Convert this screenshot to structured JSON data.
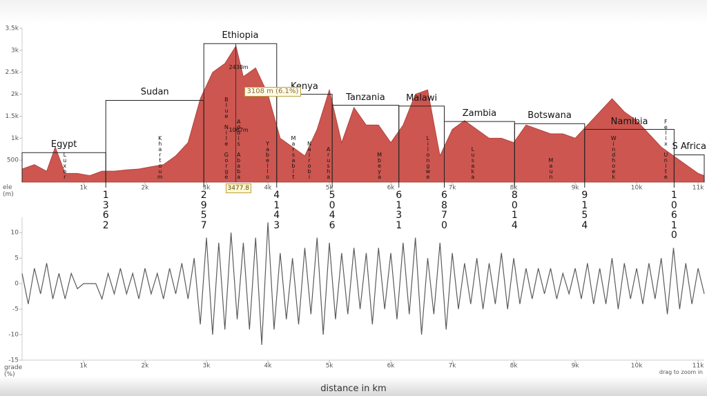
{
  "chart_data": [
    {
      "type": "area",
      "ylabel": "ele (m)",
      "color": "#cd5650",
      "x": [
        0,
        200,
        400,
        540,
        700,
        900,
        1100,
        1300,
        1500,
        1700,
        1900,
        2100,
        2300,
        2500,
        2700,
        2900,
        3100,
        3300,
        3480,
        3600,
        3800,
        4000,
        4200,
        4400,
        4600,
        4800,
        5000,
        5200,
        5400,
        5600,
        5800,
        6000,
        6200,
        6400,
        6600,
        6800,
        7000,
        7200,
        7400,
        7600,
        7800,
        8000,
        8200,
        8400,
        8600,
        8800,
        9000,
        9200,
        9400,
        9600,
        9800,
        10000,
        10200,
        10400,
        10600,
        10800,
        11000,
        11100
      ],
      "values": [
        300,
        400,
        250,
        800,
        200,
        200,
        150,
        250,
        250,
        280,
        300,
        350,
        400,
        600,
        900,
        1900,
        2500,
        2700,
        3100,
        2400,
        2600,
        2000,
        1000,
        800,
        600,
        1200,
        2100,
        900,
        1700,
        1300,
        1300,
        900,
        1300,
        2000,
        2100,
        600,
        1200,
        1400,
        1200,
        1000,
        1000,
        900,
        1300,
        1200,
        1100,
        1100,
        1000,
        1300,
        1600,
        1900,
        1600,
        1400,
        1100,
        800,
        600,
        400,
        200,
        150
      ],
      "xlim": [
        0,
        11100
      ],
      "xticks": [
        {
          "value": 1000,
          "label": "1k"
        },
        {
          "value": 2000,
          "label": "2k"
        },
        {
          "value": 3000,
          "label": "3k"
        },
        {
          "value": 4000,
          "label": "4k"
        },
        {
          "value": 5000,
          "label": "5k"
        },
        {
          "value": 6000,
          "label": "6k"
        },
        {
          "value": 7000,
          "label": "7k"
        },
        {
          "value": 8000,
          "label": "8k"
        },
        {
          "value": 9000,
          "label": "9k"
        },
        {
          "value": 10000,
          "label": "10k"
        },
        {
          "value": 11000,
          "label": "11k"
        }
      ],
      "ylim": [
        0,
        3500
      ],
      "yticks": [
        500,
        {
          "value": 1000,
          "label": "1k"
        },
        {
          "value": 1500,
          "label": "1.5k"
        },
        {
          "value": 2000,
          "label": "2k"
        },
        {
          "value": 2500,
          "label": "2.5k"
        },
        {
          "value": 3000,
          "label": "3k"
        },
        {
          "value": 3500,
          "label": "3.5k"
        }
      ],
      "regions": [
        {
          "name": "Egypt",
          "value": 670
        },
        {
          "name": "Sudan",
          "value": 1860
        },
        {
          "name": "Ethiopia",
          "value": 3150
        },
        {
          "name": "Kenya",
          "value": 2000
        },
        {
          "name": "Tanzania",
          "value": 1750
        },
        {
          "name": "Malawi",
          "value": 1730
        },
        {
          "name": "Zambia",
          "value": 1380
        },
        {
          "name": "Botswana",
          "value": 1330
        },
        {
          "name": "Namibia",
          "value": 1200
        },
        {
          "name": "S Africa",
          "value": 620
        }
      ],
      "boundaries": [
        1362,
        2957,
        4143,
        5046,
        6131,
        6870,
        8014,
        9154,
        10610
      ],
      "places": [
        {
          "label": "Luxor",
          "x": 700
        },
        {
          "label": "Khartoum",
          "x": 2250
        },
        {
          "label": "Blue Nile Gorge",
          "x": 3330
        },
        {
          "label": "Addis Ababa",
          "x": 3530
        },
        {
          "label": "Yabello",
          "x": 4000
        },
        {
          "label": "Marsabit",
          "x": 4420
        },
        {
          "label": "Nairobi",
          "x": 4680
        },
        {
          "label": "Arusha",
          "x": 4990
        },
        {
          "label": "Mbeya",
          "x": 5820
        },
        {
          "label": "Lilongwe",
          "x": 6610
        },
        {
          "label": "Lusaka",
          "x": 7340
        },
        {
          "label": "Maun",
          "x": 8610
        },
        {
          "label": "Windhoek",
          "x": 9630
        },
        {
          "label": "Felix Unite",
          "x": 10480
        }
      ],
      "annotations": [
        "2438m",
        "1067m"
      ],
      "tooltip": "3108 m (6.1%)",
      "cursor": 3477.8
    },
    {
      "type": "line",
      "ylabel": "grade (%)",
      "xlabel": "distance in km",
      "note": "drag to zoom in",
      "color": "#5a5a5a",
      "x": [
        0,
        100,
        200,
        300,
        400,
        500,
        600,
        700,
        800,
        900,
        1000,
        1100,
        1200,
        1300,
        1400,
        1500,
        1600,
        1700,
        1800,
        1900,
        2000,
        2100,
        2200,
        2300,
        2400,
        2500,
        2600,
        2700,
        2800,
        2900,
        3000,
        3100,
        3200,
        3300,
        3400,
        3500,
        3600,
        3700,
        3800,
        3900,
        4000,
        4100,
        4200,
        4300,
        4400,
        4500,
        4600,
        4700,
        4800,
        4900,
        5000,
        5100,
        5200,
        5300,
        5400,
        5500,
        5600,
        5700,
        5800,
        5900,
        6000,
        6100,
        6200,
        6300,
        6400,
        6500,
        6600,
        6700,
        6800,
        6900,
        7000,
        7100,
        7200,
        7300,
        7400,
        7500,
        7600,
        7700,
        7800,
        7900,
        8000,
        8100,
        8200,
        8300,
        8400,
        8500,
        8600,
        8700,
        8800,
        8900,
        9000,
        9100,
        9200,
        9300,
        9400,
        9500,
        9600,
        9700,
        9800,
        9900,
        10000,
        10100,
        10200,
        10300,
        10400,
        10500,
        10600,
        10700,
        10800,
        10900,
        11000,
        11100
      ],
      "values": [
        2,
        -4,
        3,
        -2,
        4,
        -3,
        2,
        -3,
        2,
        -1,
        0,
        0,
        0,
        -3,
        2,
        -2,
        3,
        -2,
        2,
        -3,
        3,
        -2,
        2,
        -3,
        3,
        -2,
        4,
        -3,
        5,
        -8,
        9,
        -10,
        8,
        -9,
        10,
        -7,
        8,
        -9,
        9,
        -12,
        12,
        -9,
        6,
        -7,
        5,
        -8,
        7,
        -6,
        9,
        -10,
        8,
        -7,
        6,
        -6,
        7,
        -5,
        6,
        -8,
        7,
        -5,
        6,
        -7,
        8,
        -6,
        9,
        -10,
        5,
        -6,
        8,
        -9,
        6,
        -5,
        4,
        -4,
        5,
        -5,
        4,
        -4,
        6,
        -5,
        5,
        -4,
        3,
        -3,
        3,
        -2,
        3,
        -3,
        2,
        -2,
        3,
        -3,
        4,
        -4,
        3,
        -4,
        5,
        -5,
        4,
        -3,
        3,
        -4,
        4,
        -3,
        5,
        -6,
        7,
        -5,
        4,
        -4,
        3,
        -2
      ],
      "xlim": [
        0,
        11100
      ],
      "xticks": [
        {
          "value": 1000,
          "label": "1k"
        },
        {
          "value": 2000,
          "label": "2k"
        },
        {
          "value": 3000,
          "label": "3k"
        },
        {
          "value": 4000,
          "label": "4k"
        },
        {
          "value": 5000,
          "label": "5k"
        },
        {
          "value": 6000,
          "label": "6k"
        },
        {
          "value": 7000,
          "label": "7k"
        },
        {
          "value": 8000,
          "label": "8k"
        },
        {
          "value": 9000,
          "label": "9k"
        },
        {
          "value": 10000,
          "label": "10k"
        },
        {
          "value": 11000,
          "label": "11k"
        }
      ],
      "ylim": [
        -15,
        13
      ],
      "yticks": [
        10,
        5,
        0,
        -5,
        -10,
        -15
      ]
    }
  ]
}
